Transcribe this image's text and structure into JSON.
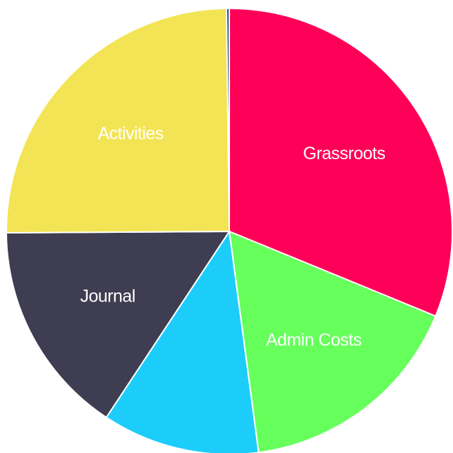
{
  "chart_data": {
    "type": "pie",
    "start": "top, clockwise",
    "slices": [
      {
        "label": "Grassroots",
        "value": 31.2,
        "color": "#ff0059"
      },
      {
        "label": "Admin Costs",
        "value": 16.7,
        "color": "#66ff5c"
      },
      {
        "label": "",
        "value": 11.4,
        "color": "#1ccdfa"
      },
      {
        "label": "Journal",
        "value": 15.6,
        "color": "#3f3d51"
      },
      {
        "label": "Activities",
        "value": 24.9,
        "color": "#f3e455"
      },
      {
        "label": "",
        "value": 0.2,
        "color": "#23478c"
      }
    ]
  }
}
